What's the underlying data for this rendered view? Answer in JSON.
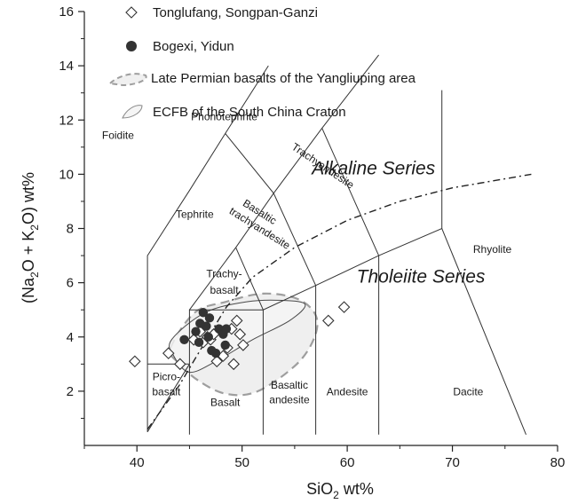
{
  "chart_data": {
    "type": "scatter",
    "title": "",
    "xlabel": {
      "main": "SiO",
      "sub": "2",
      "tail": " wt%"
    },
    "ylabel": {
      "p1": "(Na",
      "s1": "2",
      "p2": "O + K",
      "s2": "2",
      "p3": "O) wt%"
    },
    "xlim": [
      35,
      80
    ],
    "ylim": [
      0,
      16
    ],
    "x_ticks": [
      40,
      50,
      60,
      70,
      80
    ],
    "y_ticks": [
      2,
      4,
      6,
      8,
      10,
      12,
      14,
      16
    ],
    "grid": false,
    "legend": {
      "placement": "top-left",
      "entries": [
        {
          "marker": "open-diamond",
          "label": "Tonglufang, Songpan-Ganzi"
        },
        {
          "marker": "filled-circle",
          "label": "Bogexi, Yidun"
        },
        {
          "marker": "dashed-outline",
          "label": "Late Permian basalts of the Yangliuping area"
        },
        {
          "marker": "gray-outline",
          "label": "ECFB of the South China Craton"
        }
      ]
    },
    "series": [
      {
        "name": "Tonglufang, Songpan-Ganzi",
        "marker": "open-diamond",
        "points": [
          [
            39.8,
            3.1
          ],
          [
            43.0,
            3.4
          ],
          [
            44.1,
            3.0
          ],
          [
            45.4,
            3.9
          ],
          [
            46.0,
            4.2
          ],
          [
            46.3,
            3.8
          ],
          [
            46.7,
            4.0
          ],
          [
            47.0,
            3.9
          ],
          [
            47.3,
            4.1
          ],
          [
            47.6,
            3.1
          ],
          [
            48.2,
            3.3
          ],
          [
            48.6,
            3.6
          ],
          [
            49.0,
            4.3
          ],
          [
            49.5,
            4.6
          ],
          [
            49.8,
            4.1
          ],
          [
            49.2,
            3.0
          ],
          [
            50.1,
            3.7
          ],
          [
            58.2,
            4.6
          ],
          [
            59.7,
            5.1
          ]
        ]
      },
      {
        "name": "Bogexi, Yidun",
        "marker": "filled-circle",
        "points": [
          [
            44.5,
            3.9
          ],
          [
            45.6,
            4.2
          ],
          [
            45.9,
            3.8
          ],
          [
            46.3,
            4.9
          ],
          [
            46.6,
            4.4
          ],
          [
            46.9,
            4.7
          ],
          [
            47.1,
            3.5
          ],
          [
            47.5,
            3.4
          ],
          [
            47.8,
            4.3
          ],
          [
            48.2,
            4.1
          ],
          [
            48.5,
            4.3
          ],
          [
            48.4,
            3.7
          ],
          [
            46.8,
            4.0
          ],
          [
            46.0,
            4.5
          ]
        ]
      }
    ],
    "regions": [
      {
        "name": "Late Permian basalts of the Yangliuping area",
        "style": "dashed",
        "outline": [
          [
            43.2,
            3.6
          ],
          [
            45.5,
            4.9
          ],
          [
            48.5,
            5.3
          ],
          [
            52.0,
            5.6
          ],
          [
            55.3,
            5.4
          ],
          [
            57.0,
            4.8
          ],
          [
            56.9,
            4.0
          ],
          [
            55.2,
            3.0
          ],
          [
            51.5,
            2.0
          ],
          [
            48.5,
            1.9
          ],
          [
            45.8,
            2.4
          ],
          [
            43.8,
            3.1
          ]
        ]
      },
      {
        "name": "ECFB of the South China Craton",
        "style": "gray",
        "outline": [
          [
            43.3,
            3.9
          ],
          [
            46.5,
            4.9
          ],
          [
            50.5,
            5.3
          ],
          [
            53.8,
            5.35
          ],
          [
            56.0,
            5.2
          ],
          [
            54.5,
            4.6
          ],
          [
            51.0,
            3.9
          ],
          [
            47.5,
            3.1
          ],
          [
            45.0,
            2.7
          ],
          [
            43.5,
            3.3
          ]
        ]
      }
    ],
    "boundary_lines": [
      [
        [
          41,
          0.5
        ],
        [
          41,
          7
        ],
        [
          45,
          9.4
        ],
        [
          48.4,
          11.5
        ],
        [
          52.5,
          14
        ]
      ],
      [
        [
          45,
          5
        ],
        [
          49.4,
          7.3
        ],
        [
          53,
          9.3
        ],
        [
          57.6,
          11.7
        ],
        [
          63,
          14.4
        ]
      ],
      [
        [
          41,
          3
        ],
        [
          45,
          3
        ]
      ],
      [
        [
          45,
          0.4
        ],
        [
          45,
          5
        ],
        [
          52,
          5
        ],
        [
          57,
          5.9
        ],
        [
          63,
          7
        ],
        [
          69,
          8
        ],
        [
          77,
          0.4
        ]
      ],
      [
        [
          52,
          0.4
        ],
        [
          52,
          5
        ],
        [
          49.4,
          7.3
        ]
      ],
      [
        [
          57,
          0.4
        ],
        [
          57,
          5.9
        ],
        [
          53,
          9.3
        ],
        [
          48.4,
          11.5
        ]
      ],
      [
        [
          63,
          0.4
        ],
        [
          63,
          7
        ],
        [
          57.6,
          11.7
        ]
      ],
      [
        [
          69,
          8
        ],
        [
          69,
          13.1
        ]
      ],
      [
        [
          41,
          0.5
        ],
        [
          45,
          3
        ]
      ]
    ],
    "alkaline_tholeiite_divider": [
      [
        41,
        0.6
      ],
      [
        44,
        2.2
      ],
      [
        46,
        3.5
      ],
      [
        48.5,
        5.1
      ],
      [
        51,
        6.2
      ],
      [
        55,
        7.3
      ],
      [
        60,
        8.3
      ],
      [
        65,
        9.0
      ],
      [
        70,
        9.5
      ],
      [
        77.5,
        10.0
      ]
    ],
    "field_labels": [
      {
        "text": "Foidite",
        "x": 38.2,
        "y": 11.3
      },
      {
        "text": "Phonotephrite",
        "x": 48.3,
        "y": 12.0
      },
      {
        "text": "Tephrite",
        "x": 45.5,
        "y": 8.4
      },
      {
        "text": "Basaltic",
        "x": 51.5,
        "y": 8.5
      },
      {
        "text": "trachyandesite",
        "x": 51.5,
        "y": 7.9
      },
      {
        "text": "Trachyandesite",
        "x": 57.5,
        "y": 10.2
      },
      {
        "text": "Trachy-",
        "x": 48.3,
        "y": 6.2
      },
      {
        "text": "basalt",
        "x": 48.3,
        "y": 5.6
      },
      {
        "text": "Rhyolite",
        "x": 73.8,
        "y": 7.1
      },
      {
        "text": "Picro-",
        "x": 42.8,
        "y": 2.4
      },
      {
        "text": "basalt",
        "x": 42.8,
        "y": 1.85
      },
      {
        "text": "Basalt",
        "x": 48.4,
        "y": 1.45
      },
      {
        "text": "Basaltic",
        "x": 54.5,
        "y": 2.1
      },
      {
        "text": "andesite",
        "x": 54.5,
        "y": 1.55
      },
      {
        "text": "Andesite",
        "x": 60.0,
        "y": 1.85
      },
      {
        "text": "Dacite",
        "x": 71.5,
        "y": 1.85
      }
    ],
    "series_labels": [
      {
        "text": "Alkaline Series",
        "x": 62.5,
        "y": 10.0
      },
      {
        "text": "Tholeiite Series",
        "x": 67.0,
        "y": 6.0
      }
    ]
  }
}
